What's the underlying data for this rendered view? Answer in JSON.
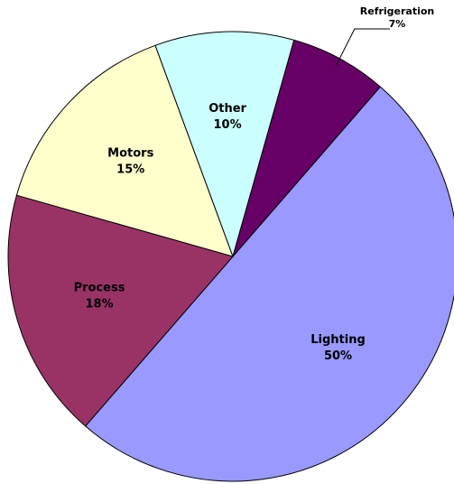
{
  "chart_data": {
    "type": "pie",
    "categories": [
      "Lighting",
      "Process",
      "Motors",
      "Other",
      "Refrigeration"
    ],
    "values": [
      50,
      18,
      15,
      10,
      7
    ],
    "value_labels": [
      "50%",
      "18%",
      "15%",
      "10%",
      "7%"
    ],
    "colors": [
      "#9999ff",
      "#993366",
      "#ffffcc",
      "#ccffff",
      "#660066"
    ]
  }
}
